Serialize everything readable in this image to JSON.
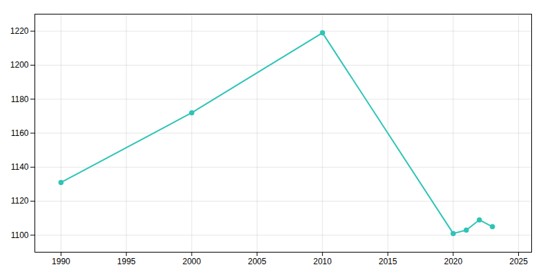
{
  "chart_data": {
    "type": "line",
    "x": [
      1990,
      2000,
      2010,
      2020,
      2021,
      2022,
      2023
    ],
    "values": [
      1131,
      1172,
      1219,
      1101,
      1103,
      1109,
      1105
    ],
    "color": "#2EC4B6",
    "marker": "circle",
    "xlim": [
      1988,
      2026
    ],
    "ylim": [
      1090,
      1230
    ],
    "xticks": [
      1990,
      1995,
      2000,
      2005,
      2010,
      2015,
      2020,
      2025
    ],
    "yticks": [
      1100,
      1120,
      1140,
      1160,
      1180,
      1200,
      1220
    ],
    "grid": true
  }
}
